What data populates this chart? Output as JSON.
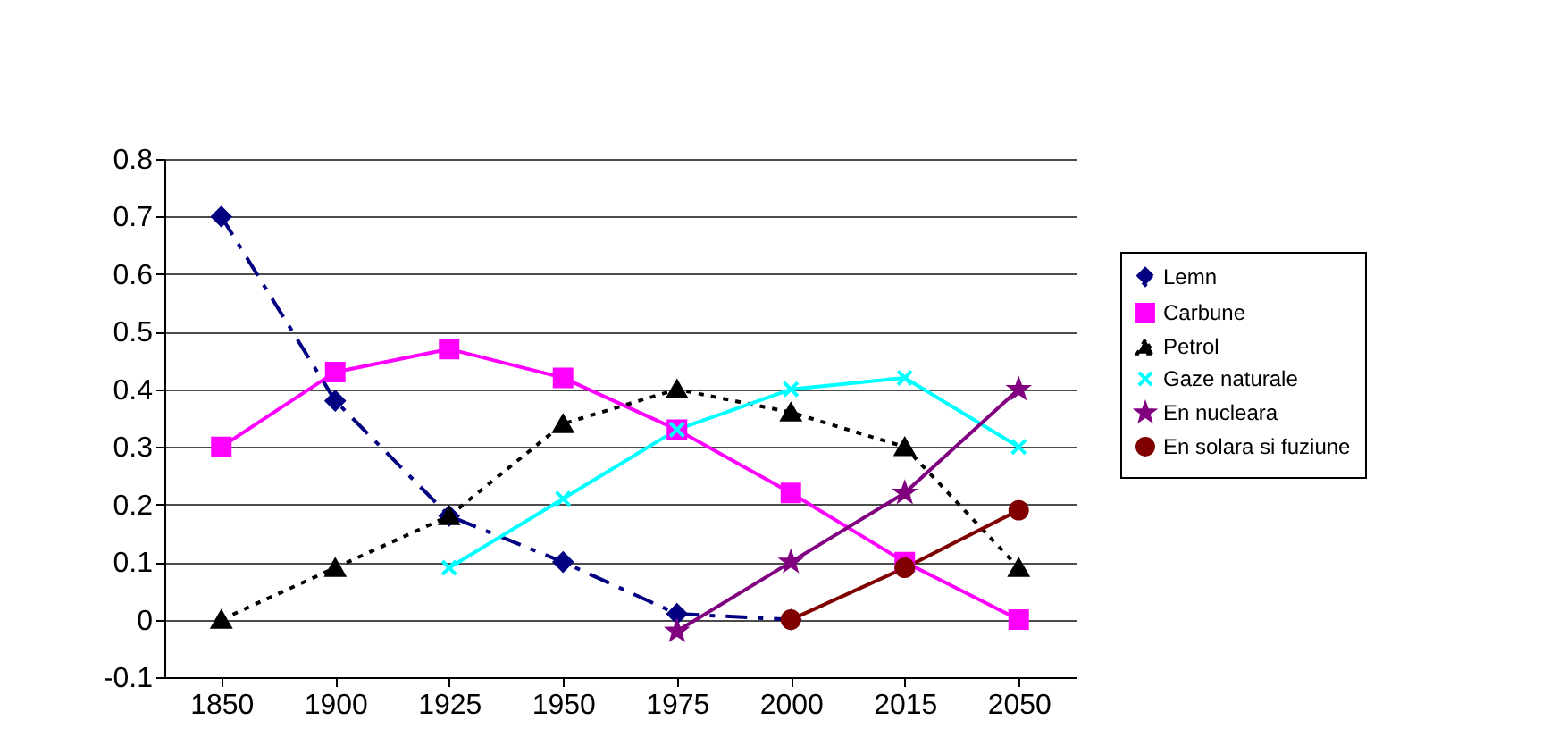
{
  "chart_data": {
    "type": "line",
    "categories": [
      "1850",
      "1900",
      "1925",
      "1950",
      "1975",
      "2000",
      "2015",
      "2050"
    ],
    "ylim": [
      -0.1,
      0.8
    ],
    "yticks": [
      -0.1,
      0,
      0.1,
      0.2,
      0.3,
      0.4,
      0.5,
      0.6,
      0.7,
      0.8
    ],
    "grid": "y",
    "legend": "right",
    "series": [
      {
        "name": "Lemn",
        "color": "#000080",
        "marker": "diamond",
        "line_style": "dashed",
        "values": [
          0.7,
          0.38,
          0.18,
          0.1,
          0.01,
          0,
          null,
          null
        ]
      },
      {
        "name": "Carbune",
        "color": "#ff00ff",
        "marker": "square",
        "line_style": "solid",
        "values": [
          0.3,
          0.43,
          0.47,
          0.42,
          0.33,
          0.22,
          0.1,
          0
        ]
      },
      {
        "name": "Petrol",
        "color": "#000000",
        "marker": "triangle",
        "line_style": "dotted",
        "values": [
          0,
          0.09,
          0.18,
          0.34,
          0.4,
          0.36,
          0.3,
          0.09
        ]
      },
      {
        "name": "Gaze naturale",
        "color": "#00ffff",
        "marker": "cross",
        "line_style": "solid",
        "values": [
          null,
          null,
          0.09,
          0.21,
          0.33,
          0.4,
          0.42,
          0.3
        ]
      },
      {
        "name": "En nucleara",
        "color": "#800080",
        "marker": "star",
        "line_style": "solid",
        "values": [
          null,
          null,
          null,
          null,
          -0.02,
          0.1,
          0.22,
          0.4
        ]
      },
      {
        "name": "En solara si fuziune",
        "color": "#800000",
        "marker": "circle",
        "line_style": "solid",
        "values": [
          null,
          null,
          null,
          null,
          null,
          0,
          0.09,
          0.19
        ]
      }
    ]
  }
}
